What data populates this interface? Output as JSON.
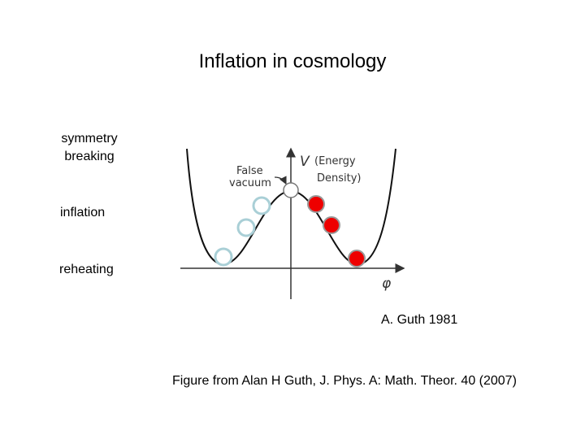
{
  "title": "Inflation in cosmology",
  "stages": [
    "symmetry breaking",
    "inflation",
    "reheating"
  ],
  "figure": {
    "false_vacuum": [
      "False",
      "vacuum"
    ],
    "axis_y": "V",
    "axis_y_note": [
      "(Energy",
      "Density)"
    ],
    "axis_x": "φ"
  },
  "attribution": "A. Guth 1981",
  "caption": "Figure from Alan H Guth, J. Phys. A: Math. Theor. 40 (2007)"
}
